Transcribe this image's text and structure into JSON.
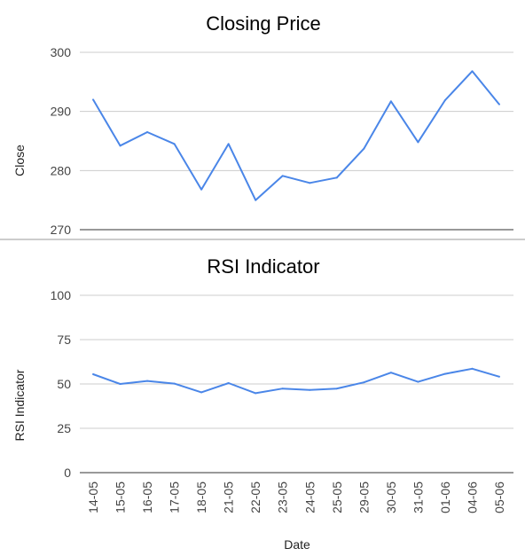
{
  "colors": {
    "series": "#4a86e8",
    "grid": "#cccccc",
    "divider": "#999999"
  },
  "chart_data": [
    {
      "type": "line",
      "title": "Closing Price",
      "xlabel": "",
      "ylabel": "Close",
      "ylim": [
        270,
        300
      ],
      "yticks": [
        "270",
        "280",
        "290",
        "300"
      ],
      "grid": true,
      "categories": [
        "14-05",
        "15-05",
        "16-05",
        "17-05",
        "18-05",
        "21-05",
        "22-05",
        "23-05",
        "24-05",
        "25-05",
        "29-05",
        "30-05",
        "31-05",
        "01-06",
        "04-06",
        "05-06"
      ],
      "values": [
        292.0,
        284.2,
        286.5,
        284.5,
        276.8,
        284.5,
        275.0,
        279.1,
        277.9,
        278.8,
        283.7,
        291.7,
        284.8,
        291.9,
        296.8,
        291.2
      ]
    },
    {
      "type": "line",
      "title": "RSI Indicator",
      "xlabel": "Date",
      "ylabel": "RSI Indicator",
      "ylim": [
        0,
        100
      ],
      "yticks": [
        "0",
        "25",
        "50",
        "75",
        "100"
      ],
      "grid": true,
      "categories": [
        "14-05",
        "15-05",
        "16-05",
        "17-05",
        "18-05",
        "21-05",
        "22-05",
        "23-05",
        "24-05",
        "25-05",
        "29-05",
        "30-05",
        "31-05",
        "01-06",
        "04-06",
        "05-06"
      ],
      "values": [
        55.5,
        50.0,
        51.7,
        50.2,
        45.3,
        50.5,
        44.8,
        47.4,
        46.6,
        47.4,
        50.9,
        56.4,
        51.2,
        55.7,
        58.6,
        54.1
      ]
    }
  ]
}
